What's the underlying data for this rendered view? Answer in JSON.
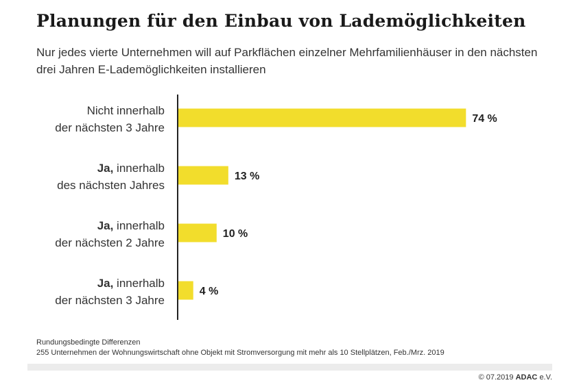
{
  "title": "Planungen für den Einbau von Lademöglichkeiten",
  "subtitle": "Nur jedes vierte Unternehmen will auf Parkflächen einzelner Mehrfamilienhäuser in den nächsten drei Jahren E-Lademöglichkeiten installieren",
  "chart_data": {
    "type": "bar",
    "orientation": "horizontal",
    "categories": [
      {
        "bold": "",
        "rest": "Nicht innerhalb",
        "line2": "der nächsten 3 Jahre"
      },
      {
        "bold": "Ja,",
        "rest": " innerhalb",
        "line2": "des nächsten Jahres"
      },
      {
        "bold": "Ja,",
        "rest": " innerhalb",
        "line2": "der nächsten 2 Jahre"
      },
      {
        "bold": "Ja,",
        "rest": " innerhalb",
        "line2": "der nächsten 3 Jahre"
      }
    ],
    "values": [
      74,
      13,
      10,
      4
    ],
    "value_labels": [
      "74 %",
      "13 %",
      "10 %",
      "4 %"
    ],
    "xlim": [
      0,
      100
    ],
    "bar_color": "#f2dd2c",
    "axis_color": "#222222"
  },
  "notes": [
    "Rundungsbedingte Differenzen",
    "255 Unternehmen der Wohnungswirtschaft ohne Objekt mit Stromversorgung mit mehr als 10 Stellplätzen, Feb./Mrz. 2019"
  ],
  "footer": {
    "copyright": "© 07.2019",
    "brand": "ADAC",
    "brand_suffix": "e.V."
  }
}
